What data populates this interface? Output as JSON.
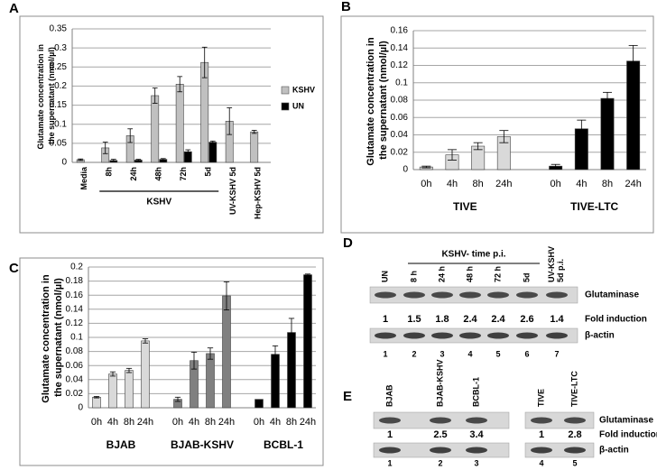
{
  "chart_data": [
    {
      "panel": "A",
      "type": "bar",
      "ylabel": "Glutamate concentration in the supernatant (nmol/µl)",
      "categories": [
        "Media",
        "8h",
        "24h",
        "48h",
        "72h",
        "5d",
        "UV-KSHV 5d",
        "Hep-KSHV 5d"
      ],
      "group_label": "KSHV",
      "series": [
        {
          "name": "KSHV",
          "color": "#c0c0c0",
          "values": [
            0.007,
            0.038,
            0.07,
            0.175,
            0.205,
            0.262,
            0.108,
            0.08
          ],
          "errors": [
            0.002,
            0.015,
            0.018,
            0.02,
            0.02,
            0.04,
            0.035,
            0.004
          ]
        },
        {
          "name": "UN",
          "color": "#000000",
          "values": [
            null,
            0.005,
            0.006,
            0.008,
            0.028,
            0.053,
            null,
            null
          ],
          "errors": [
            null,
            0.003,
            0.002,
            0.002,
            0.005,
            0.003,
            null,
            null
          ]
        }
      ],
      "ylim": [
        0,
        0.35
      ],
      "yticks": [
        0,
        0.05,
        0.1,
        0.15,
        0.2,
        0.25,
        0.3,
        0.35
      ],
      "grid": true,
      "legend": "right"
    },
    {
      "panel": "B",
      "type": "bar",
      "ylabel": "Glutamate concentration in the supernatant (nmol/µl)",
      "groups": [
        {
          "name": "TIVE",
          "color": "#d9d9d9",
          "categories": [
            "0h",
            "4h",
            "8h",
            "24h"
          ],
          "values": [
            0.003,
            0.017,
            0.027,
            0.038
          ],
          "errors": [
            0.001,
            0.006,
            0.004,
            0.007
          ]
        },
        {
          "name": "TIVE-LTC",
          "color": "#000000",
          "categories": [
            "0h",
            "4h",
            "8h",
            "24h"
          ],
          "values": [
            0.004,
            0.047,
            0.082,
            0.125
          ],
          "errors": [
            0.002,
            0.01,
            0.007,
            0.018
          ]
        }
      ],
      "ylim": [
        0,
        0.16
      ],
      "yticks": [
        0,
        0.02,
        0.04,
        0.06,
        0.08,
        0.1,
        0.12,
        0.14,
        0.16
      ],
      "grid": true
    },
    {
      "panel": "C",
      "type": "bar",
      "ylabel": "Glutamate concentration in the supernatant (nmol/µl)",
      "groups": [
        {
          "name": "BJAB",
          "color": "#d9d9d9",
          "categories": [
            "0h",
            "4h",
            "8h",
            "24h"
          ],
          "values": [
            0.015,
            0.048,
            0.053,
            0.095
          ],
          "errors": [
            0.001,
            0.003,
            0.003,
            0.003
          ]
        },
        {
          "name": "BJAB-KSHV",
          "color": "#808080",
          "categories": [
            "0h",
            "4h",
            "8h",
            "24h"
          ],
          "values": [
            0.012,
            0.067,
            0.077,
            0.159
          ],
          "errors": [
            0.003,
            0.012,
            0.008,
            0.02
          ]
        },
        {
          "name": "BCBL-1",
          "color": "#000000",
          "categories": [
            "0h",
            "4h",
            "8h",
            "24h"
          ],
          "values": [
            0.012,
            0.076,
            0.107,
            0.189
          ],
          "errors": [
            null,
            0.012,
            0.02,
            0.001
          ]
        }
      ],
      "ylim": [
        0,
        0.2
      ],
      "yticks": [
        0,
        0.02,
        0.04,
        0.06,
        0.08,
        0.1,
        0.12,
        0.14,
        0.16,
        0.18,
        0.2
      ],
      "grid": true
    }
  ],
  "blots": [
    {
      "panel": "D",
      "group_label": "KSHV- time p.i.",
      "lanes": [
        "UN",
        "8 h",
        "24 h",
        "48 h",
        "72 h",
        "5d",
        "UV-KSHV 5d p.i."
      ],
      "rows": [
        "Glutaminase",
        "Fold induction",
        "β-actin"
      ],
      "fold_induction": [
        "1",
        "1.5",
        "1.8",
        "2.4",
        "2.4",
        "2.6",
        "1.4"
      ],
      "lane_numbers": [
        "1",
        "2",
        "3",
        "4",
        "5",
        "6",
        "7"
      ]
    },
    {
      "panel": "E",
      "lanes": [
        "BJAB",
        "BJAB-KSHV",
        "BCBL-1",
        "TIVE",
        "TIVE-LTC"
      ],
      "rows": [
        "Glutaminase",
        "Fold induction",
        "β-actin"
      ],
      "fold_induction": [
        "1",
        "2.5",
        "3.4",
        "1",
        "2.8"
      ],
      "lane_numbers": [
        "1",
        "2",
        "3",
        "4",
        "5"
      ]
    }
  ]
}
